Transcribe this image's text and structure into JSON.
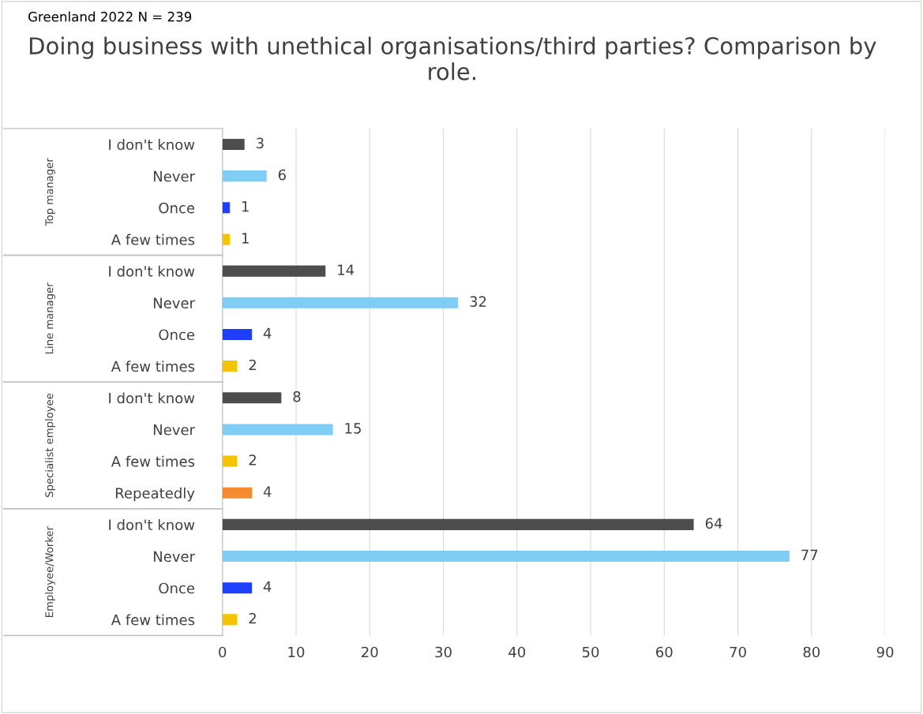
{
  "chart_data": {
    "type": "bar",
    "orientation": "horizontal",
    "title": "Doing business with unethical organisations/third parties? Comparison by role.",
    "annotations": [
      "Greenland 2022 N = 239",
      "Top manager",
      "Line manager",
      "Specialist employee",
      "Employee/Worker"
    ],
    "categories": [
      "I don't know",
      "Never",
      "Once",
      "A few times",
      "I don't know",
      "Never",
      "Once",
      "A few times",
      "I don't know",
      "Never",
      "A few times",
      "Repeatedly",
      "I don't know",
      "Never",
      "Once",
      "A few times"
    ],
    "values": [
      3,
      6,
      1,
      1,
      14,
      32,
      4,
      2,
      8,
      15,
      2,
      4,
      64,
      77,
      4,
      2
    ],
    "colors": [
      "#4d4d4d",
      "#7fcdf5",
      "#1f3fff",
      "#f5c400",
      "#4d4d4d",
      "#7fcdf5",
      "#1f3fff",
      "#f5c400",
      "#4d4d4d",
      "#7fcdf5",
      "#f5c400",
      "#f58a2e",
      "#4d4d4d",
      "#7fcdf5",
      "#1f3fff",
      "#f5c400"
    ],
    "xlim": [
      0,
      90
    ],
    "xticks": [
      0,
      10,
      20,
      30,
      40,
      50,
      60,
      70,
      80,
      90
    ],
    "grid": "x",
    "data_labels": true,
    "legend": false
  }
}
